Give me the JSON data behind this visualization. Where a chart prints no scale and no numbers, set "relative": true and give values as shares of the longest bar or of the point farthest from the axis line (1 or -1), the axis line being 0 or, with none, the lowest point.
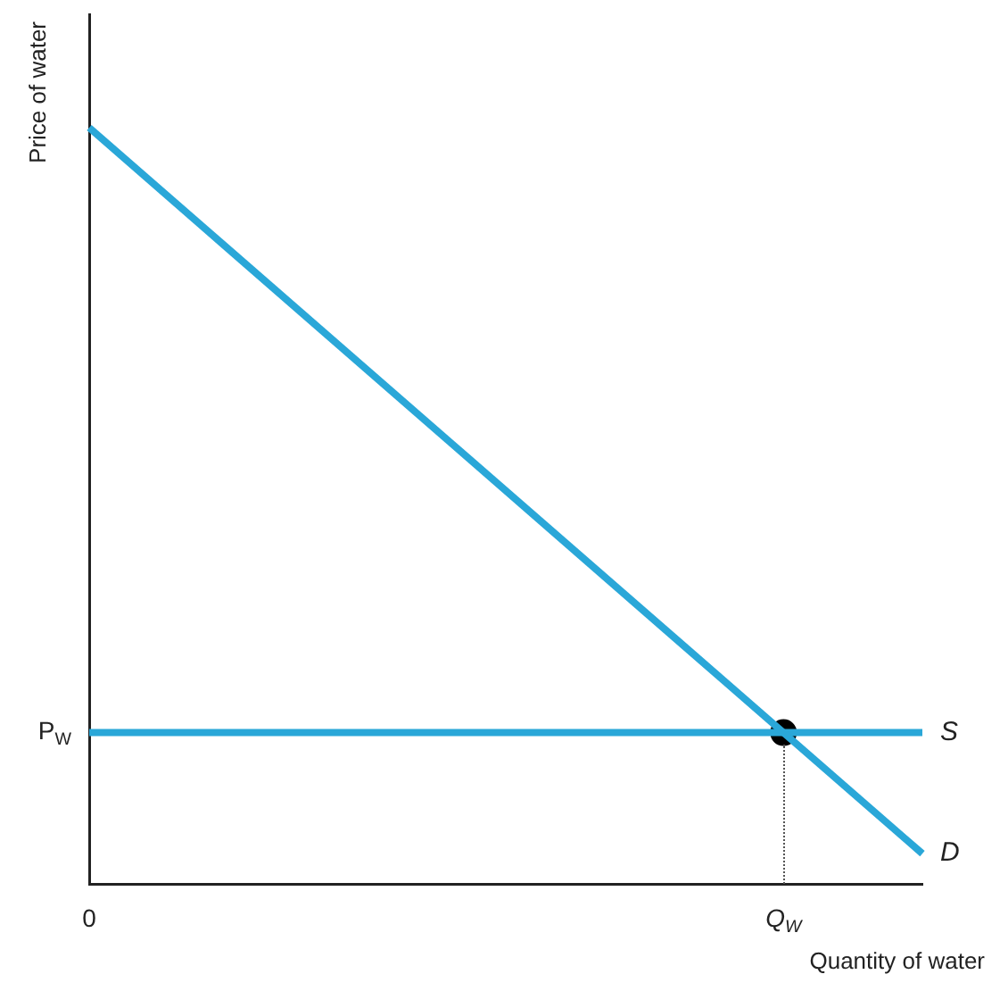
{
  "chart_data": {
    "type": "line",
    "relative": true,
    "xlabel": "Quantity of water",
    "ylabel": "Price of water",
    "categories": [
      "0",
      null,
      null,
      null,
      null,
      "Q$_{W}$",
      null
    ],
    "series": [
      {
        "name": "D",
        "color": "#2aa7d8",
        "values": [
          1,
          null,
          null,
          null,
          null,
          null,
          0.04
        ]
      },
      {
        "name": "S",
        "color": "#2aa7d8",
        "values": [
          0.2,
          null,
          null,
          null,
          null,
          null,
          0.2
        ]
      },
      {
        "type": "scatter",
        "color": "#000000",
        "values": [
          null,
          null,
          null,
          null,
          null,
          0.2,
          null
        ],
        "marker": "circle"
      }
    ],
    "annotations": [
      "P$_{W}$"
    ],
    "grid": false,
    "legend": false,
    "marker": "none",
    "line_style": "solid"
  }
}
